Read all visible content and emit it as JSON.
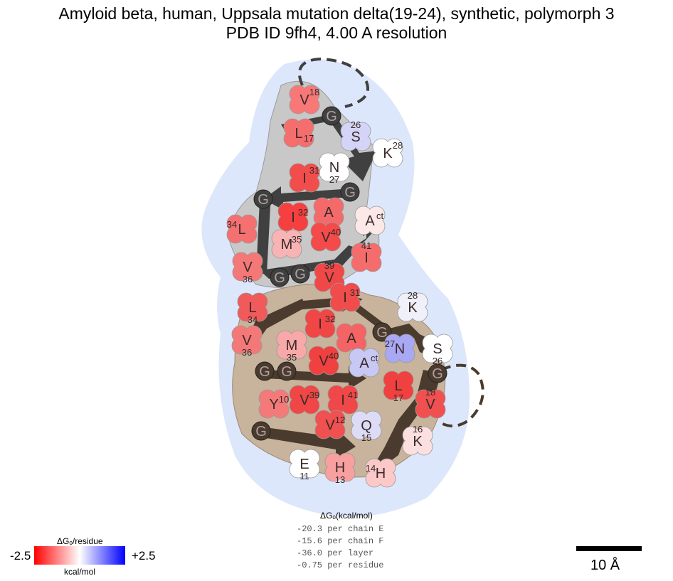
{
  "title": {
    "line1": "Amyloid beta, human, Uppsala mutation delta(19-24), synthetic, polymorph 3",
    "line2": "PDB ID 9fh4, 4.00 A resolution"
  },
  "energy_legend": {
    "header": "ΔGₒ(kcal/mol)",
    "lines": [
      "-20.3 per chain E",
      "-15.6 per chain F",
      "-36.0 per layer",
      "-0.75 per residue"
    ]
  },
  "colorbar": {
    "title": "ΔGₒ/residue",
    "min_label": "-2.5",
    "max_label": "+2.5",
    "unit": "kcal/mol",
    "min_color": "#ff0000",
    "mid_color": "#ffffff",
    "max_color": "#0000ff"
  },
  "scale_bar": {
    "label": "10 Å"
  },
  "colors": {
    "upper_fill": "#c8c8c8",
    "lower_fill": "#c8b39c",
    "halo": "#dde7fb",
    "upper_arrow": "#404040",
    "lower_arrow": "#4a3b2e"
  },
  "upper_chain": {
    "residues": [
      {
        "aa": "V",
        "num": "18",
        "color": "#f87878"
      },
      {
        "aa": "L",
        "num": "17",
        "color": "#f56e6e"
      },
      {
        "aa": "G",
        "num": "",
        "color": "#404040"
      },
      {
        "aa": "S",
        "num": "26",
        "color": "#d4d4f6"
      },
      {
        "aa": "K",
        "num": "28",
        "color": "#ffffff"
      },
      {
        "aa": "N",
        "num": "27",
        "color": "#ffffff"
      },
      {
        "aa": "I",
        "num": "31",
        "color": "#f24d4d"
      },
      {
        "aa": "G",
        "num": "",
        "color": "#404040"
      },
      {
        "aa": "G",
        "num": "",
        "color": "#404040"
      },
      {
        "aa": "I",
        "num": "32",
        "color": "#f64040"
      },
      {
        "aa": "A",
        "num": "",
        "color": "#f46a6a"
      },
      {
        "aa": "A",
        "num": "ct",
        "color": "#fde8e8"
      },
      {
        "aa": "L",
        "num": "34",
        "color": "#f57070"
      },
      {
        "aa": "M",
        "num": "35",
        "color": "#f8b4b4"
      },
      {
        "aa": "V",
        "num": "40",
        "color": "#f44a4a"
      },
      {
        "aa": "V",
        "num": "36",
        "color": "#f47878"
      },
      {
        "aa": "I",
        "num": "41",
        "color": "#f46c6c"
      },
      {
        "aa": "G",
        "num": "",
        "color": "#404040"
      },
      {
        "aa": "G",
        "num": "",
        "color": "#404040"
      },
      {
        "aa": "V",
        "num": "39",
        "color": "#f04848"
      }
    ]
  },
  "lower_chain": {
    "residues": [
      {
        "aa": "I",
        "num": "31",
        "color": "#f04c4c"
      },
      {
        "aa": "K",
        "num": "28",
        "color": "#f0f0fa"
      },
      {
        "aa": "G",
        "num": "",
        "color": "#4a3b2e"
      },
      {
        "aa": "L",
        "num": "34",
        "color": "#f05a5a"
      },
      {
        "aa": "I",
        "num": "32",
        "color": "#f04646"
      },
      {
        "aa": "A",
        "num": "",
        "color": "#f46464"
      },
      {
        "aa": "N",
        "num": "27",
        "color": "#a8a8f4"
      },
      {
        "aa": "S",
        "num": "26",
        "color": "#ffffff"
      },
      {
        "aa": "V",
        "num": "36",
        "color": "#f47878"
      },
      {
        "aa": "M",
        "num": "35",
        "color": "#f8a8a8"
      },
      {
        "aa": "A",
        "num": "ct",
        "color": "#c8c8f4"
      },
      {
        "aa": "V",
        "num": "40",
        "color": "#f04040"
      },
      {
        "aa": "G",
        "num": "",
        "color": "#4a3b2e"
      },
      {
        "aa": "G",
        "num": "",
        "color": "#4a3b2e"
      },
      {
        "aa": "G",
        "num": "",
        "color": "#4a3b2e"
      },
      {
        "aa": "L",
        "num": "17",
        "color": "#f04040"
      },
      {
        "aa": "Y",
        "num": "10",
        "color": "#f47a7a"
      },
      {
        "aa": "V",
        "num": "39",
        "color": "#f04646"
      },
      {
        "aa": "I",
        "num": "41",
        "color": "#f04848"
      },
      {
        "aa": "V",
        "num": "18",
        "color": "#f05050"
      },
      {
        "aa": "Q",
        "num": "15",
        "color": "#dcdcf6"
      },
      {
        "aa": "V",
        "num": "12",
        "color": "#f05050"
      },
      {
        "aa": "G",
        "num": "",
        "color": "#4a3b2e"
      },
      {
        "aa": "K",
        "num": "16",
        "color": "#fce0e0"
      },
      {
        "aa": "E",
        "num": "11",
        "color": "#ffffff"
      },
      {
        "aa": "H",
        "num": "13",
        "color": "#f8a0a0"
      },
      {
        "aa": "H",
        "num": "14",
        "color": "#fcc8c8"
      }
    ]
  }
}
